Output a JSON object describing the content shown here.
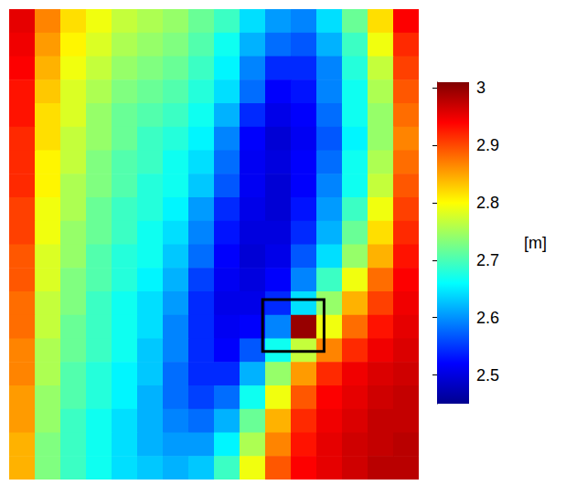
{
  "chart_data": {
    "type": "heatmap",
    "cells": [
      [
        2.92,
        2.84,
        2.8,
        2.78,
        2.76,
        2.75,
        2.74,
        2.72,
        2.7,
        2.66,
        2.63,
        2.62,
        2.66,
        2.72,
        2.8,
        2.9
      ],
      [
        2.91,
        2.83,
        2.79,
        2.77,
        2.75,
        2.74,
        2.73,
        2.71,
        2.68,
        2.64,
        2.61,
        2.6,
        2.64,
        2.7,
        2.78,
        2.88
      ],
      [
        2.9,
        2.82,
        2.78,
        2.76,
        2.74,
        2.73,
        2.72,
        2.7,
        2.67,
        2.62,
        2.58,
        2.58,
        2.62,
        2.69,
        2.76,
        2.87
      ],
      [
        2.89,
        2.81,
        2.77,
        2.75,
        2.73,
        2.72,
        2.71,
        2.69,
        2.66,
        2.61,
        2.56,
        2.57,
        2.62,
        2.68,
        2.75,
        2.86
      ],
      [
        2.89,
        2.8,
        2.77,
        2.74,
        2.72,
        2.71,
        2.7,
        2.68,
        2.64,
        2.58,
        2.54,
        2.56,
        2.61,
        2.68,
        2.74,
        2.85
      ],
      [
        2.88,
        2.8,
        2.76,
        2.74,
        2.72,
        2.7,
        2.69,
        2.67,
        2.62,
        2.56,
        2.52,
        2.55,
        2.6,
        2.67,
        2.74,
        2.84
      ],
      [
        2.88,
        2.79,
        2.76,
        2.73,
        2.71,
        2.7,
        2.68,
        2.66,
        2.61,
        2.55,
        2.53,
        2.56,
        2.61,
        2.68,
        2.75,
        2.85
      ],
      [
        2.88,
        2.79,
        2.75,
        2.73,
        2.71,
        2.69,
        2.68,
        2.65,
        2.6,
        2.55,
        2.52,
        2.56,
        2.62,
        2.68,
        2.76,
        2.86
      ],
      [
        2.87,
        2.78,
        2.75,
        2.72,
        2.7,
        2.69,
        2.67,
        2.63,
        2.58,
        2.54,
        2.52,
        2.57,
        2.63,
        2.7,
        2.78,
        2.87
      ],
      [
        2.87,
        2.78,
        2.74,
        2.72,
        2.7,
        2.68,
        2.66,
        2.62,
        2.57,
        2.53,
        2.53,
        2.58,
        2.64,
        2.72,
        2.8,
        2.88
      ],
      [
        2.86,
        2.77,
        2.74,
        2.71,
        2.69,
        2.68,
        2.65,
        2.61,
        2.56,
        2.52,
        2.54,
        2.6,
        2.66,
        2.74,
        2.82,
        2.89
      ],
      [
        2.86,
        2.77,
        2.73,
        2.71,
        2.69,
        2.67,
        2.64,
        2.59,
        2.55,
        2.53,
        2.56,
        2.62,
        2.7,
        2.78,
        2.85,
        2.9
      ],
      [
        2.85,
        2.76,
        2.73,
        2.7,
        2.68,
        2.66,
        2.63,
        2.58,
        2.54,
        2.54,
        2.58,
        2.66,
        2.74,
        2.82,
        2.87,
        2.91
      ],
      [
        2.85,
        2.76,
        2.72,
        2.7,
        2.68,
        2.66,
        2.62,
        2.58,
        2.55,
        2.56,
        2.62,
        2.99,
        2.78,
        2.85,
        2.89,
        2.92
      ],
      [
        2.84,
        2.75,
        2.72,
        2.7,
        2.68,
        2.65,
        2.62,
        2.58,
        2.56,
        2.6,
        2.68,
        2.76,
        2.84,
        2.88,
        2.91,
        2.93
      ],
      [
        2.84,
        2.75,
        2.71,
        2.69,
        2.67,
        2.65,
        2.61,
        2.58,
        2.58,
        2.64,
        2.74,
        2.83,
        2.88,
        2.91,
        2.93,
        2.94
      ],
      [
        2.83,
        2.74,
        2.71,
        2.69,
        2.67,
        2.64,
        2.61,
        2.59,
        2.61,
        2.68,
        2.78,
        2.86,
        2.9,
        2.92,
        2.94,
        2.95
      ],
      [
        2.83,
        2.74,
        2.7,
        2.68,
        2.66,
        2.64,
        2.62,
        2.61,
        2.64,
        2.72,
        2.82,
        2.88,
        2.91,
        2.93,
        2.95,
        2.95
      ],
      [
        2.82,
        2.73,
        2.7,
        2.68,
        2.66,
        2.64,
        2.63,
        2.63,
        2.67,
        2.75,
        2.84,
        2.89,
        2.92,
        2.94,
        2.95,
        2.96
      ],
      [
        2.82,
        2.73,
        2.7,
        2.68,
        2.66,
        2.65,
        2.64,
        2.65,
        2.7,
        2.78,
        2.86,
        2.9,
        2.92,
        2.94,
        2.96,
        2.96
      ]
    ],
    "colorbar": {
      "label": "[m]",
      "range": [
        2.45,
        3.01
      ],
      "ticks": [
        2.5,
        2.6,
        2.7,
        2.8,
        2.9,
        3
      ]
    },
    "annotation_box": {
      "x": [
        9.9,
        12.3
      ],
      "y": [
        12.35,
        14.55
      ]
    },
    "tick_labels": false
  }
}
